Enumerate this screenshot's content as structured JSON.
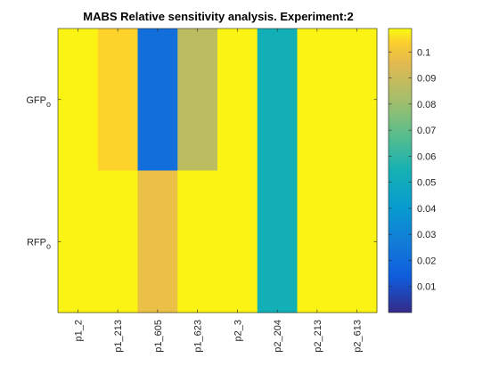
{
  "chart_data": {
    "type": "heatmap",
    "title": "MABS Relative sensitivity analysis. Experiment:2",
    "xlabel": "",
    "ylabel": "",
    "x_categories": [
      "p1_2",
      "p1_213",
      "p1_605",
      "p1_623",
      "p2_3",
      "p2_204",
      "p2_213",
      "p2_613"
    ],
    "y_categories": [
      {
        "base": "GFP",
        "sub": "o"
      },
      {
        "base": "RFP",
        "sub": "o"
      }
    ],
    "values": [
      [
        0.108,
        0.104,
        0.021,
        0.087,
        0.108,
        0.053,
        0.108,
        0.108
      ],
      [
        0.108,
        0.108,
        0.098,
        0.108,
        0.108,
        0.053,
        0.108,
        0.108
      ]
    ],
    "colorbar": {
      "colormap": "parula",
      "range": [
        0.0,
        0.109
      ],
      "ticks": [
        0.01,
        0.02,
        0.03,
        0.04,
        0.05,
        0.06,
        0.07,
        0.08,
        0.09,
        0.1
      ],
      "tick_labels": [
        "0.01",
        "0.02",
        "0.03",
        "0.04",
        "0.05",
        "0.06",
        "0.07",
        "0.08",
        "0.09",
        "0.1"
      ],
      "placement": "right"
    },
    "grid": false
  }
}
